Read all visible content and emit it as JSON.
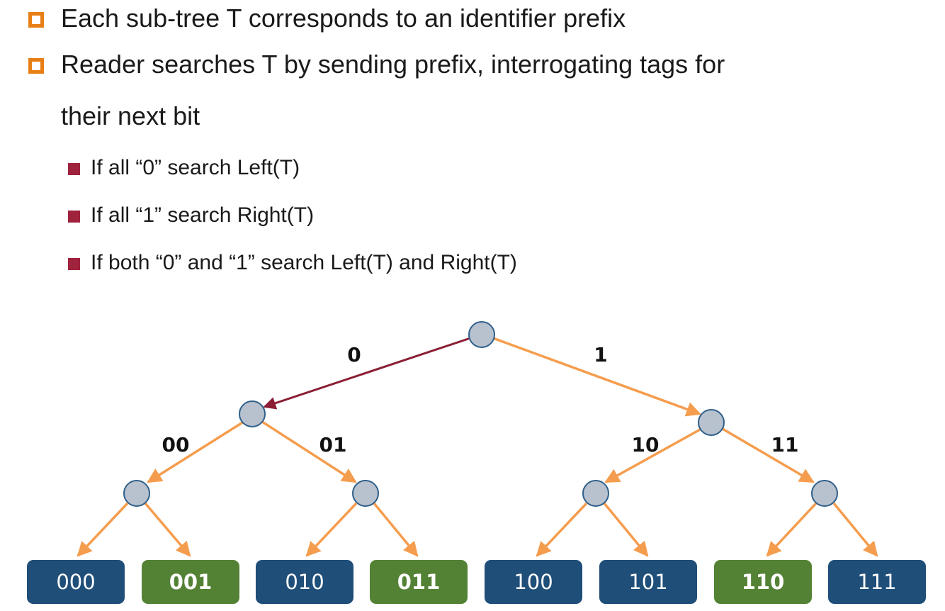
{
  "bullets": {
    "b1": "Each sub-tree T corresponds to an identifier prefix",
    "b2_line1": "Reader searches T by sending prefix, interrogating tags for",
    "b2_line2": "their next bit",
    "sub1": "If all “0” search Left(T)",
    "sub2": "If all “1” search Right(T)",
    "sub3": "If both “0” and “1” search Left(T) and Right(T)"
  },
  "tree": {
    "edge_labels": [
      "0",
      "1",
      "00",
      "01",
      "10",
      "11"
    ],
    "leaves": [
      {
        "label": "000",
        "responding": false
      },
      {
        "label": "001",
        "responding": true
      },
      {
        "label": "010",
        "responding": false
      },
      {
        "label": "011",
        "responding": true
      },
      {
        "label": "100",
        "responding": false
      },
      {
        "label": "101",
        "responding": false
      },
      {
        "label": "110",
        "responding": true
      },
      {
        "label": "111",
        "responding": false
      }
    ],
    "colors": {
      "leaf_default": "#1f4e79",
      "leaf_responding": "#548235",
      "edge": "#f59d4e",
      "edge_highlight": "#8b1e34",
      "node_fill": "#b8c2cf",
      "node_stroke": "#2f5f8a"
    }
  }
}
